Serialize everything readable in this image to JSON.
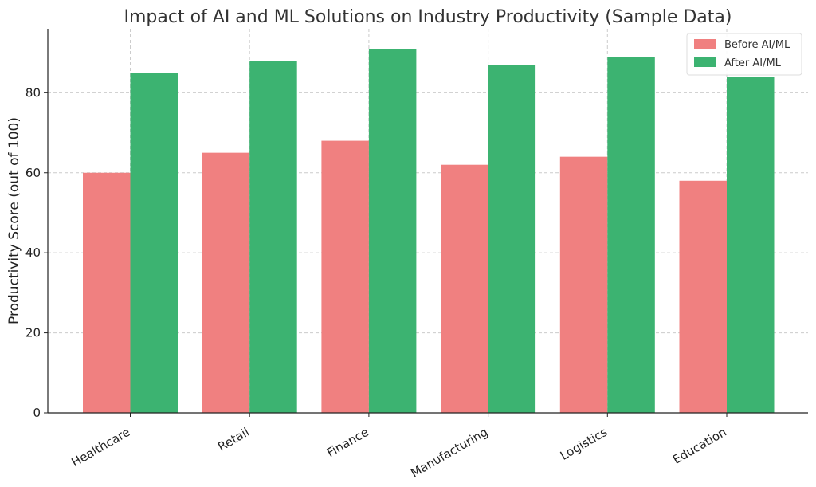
{
  "chart_data": {
    "type": "bar",
    "title": "Impact of AI and ML Solutions on Industry Productivity (Sample Data)",
    "xlabel": "",
    "ylabel": "Productivity Score (out of 100)",
    "categories": [
      "Healthcare",
      "Retail",
      "Finance",
      "Manufacturing",
      "Logistics",
      "Education"
    ],
    "series": [
      {
        "name": "Before AI/ML",
        "color": "#f08080",
        "values": [
          60,
          65,
          68,
          62,
          64,
          58
        ]
      },
      {
        "name": "After AI/ML",
        "color": "#3cb371",
        "values": [
          85,
          88,
          91,
          87,
          89,
          84
        ]
      }
    ],
    "ylim": [
      0,
      96
    ],
    "yticks": [
      0,
      20,
      40,
      60,
      80
    ],
    "grid": true,
    "legend_position": "top-right"
  }
}
